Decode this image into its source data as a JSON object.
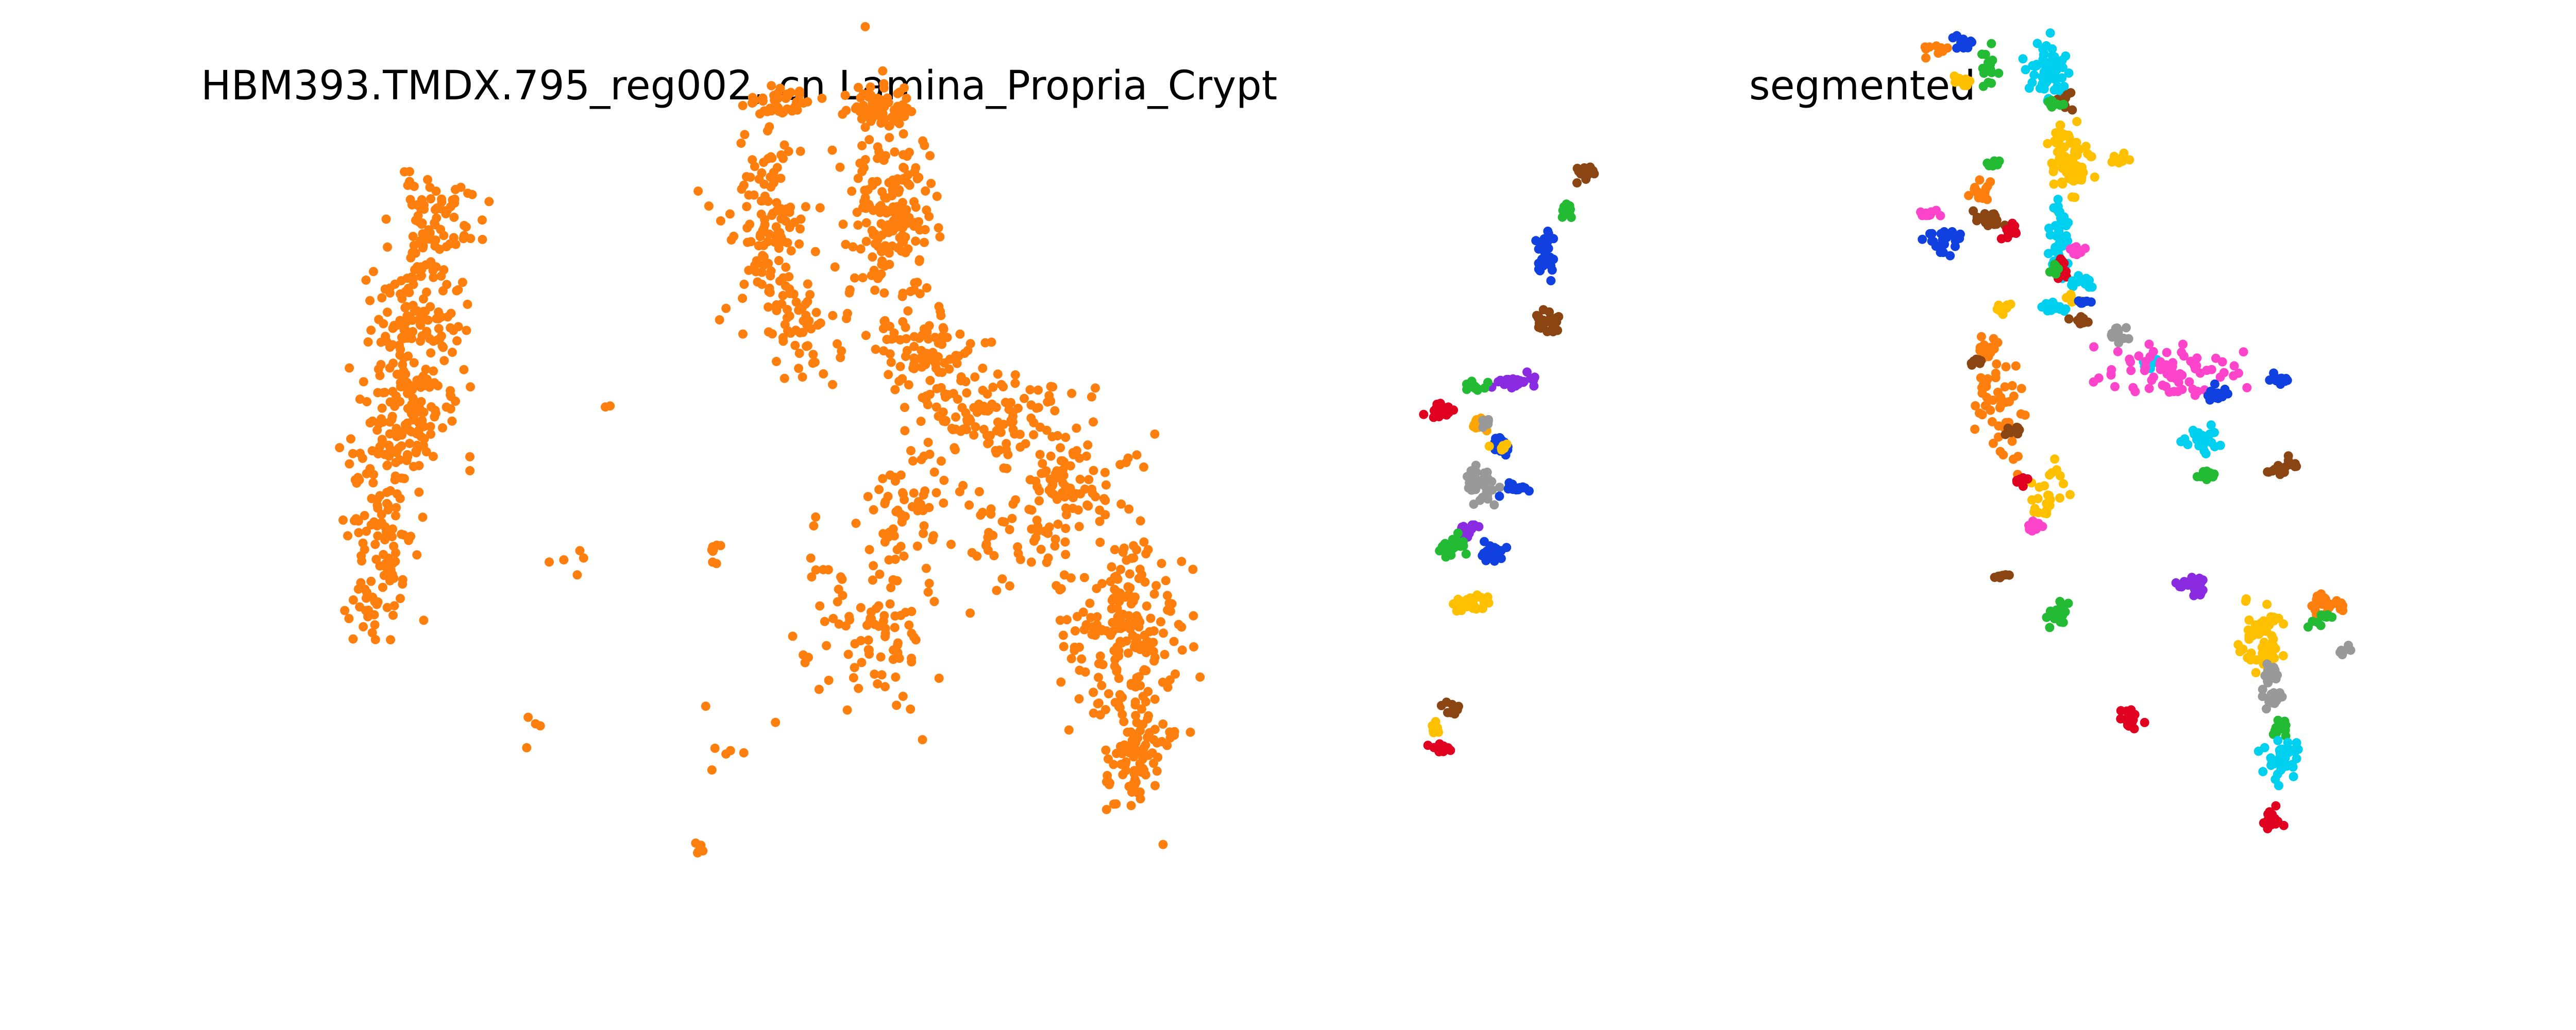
{
  "figure": {
    "left_title": "HBM393.TMDX.795_reg002, cn Lamina_Propria_Crypt",
    "right_title": "segmented"
  },
  "chart_data": [
    {
      "type": "scatter",
      "title": "HBM393.TMDX.795_reg002, cn Lamina_Propria_Crypt",
      "axes": "off",
      "grid": false,
      "legend": "none",
      "xlim": [
        0,
        1600
      ],
      "ylim": [
        0,
        1600
      ],
      "point_color": "#ff7f0e",
      "series": [
        {
          "clusters": [
            {
              "x": 160,
              "y": 1450,
              "sx": 40,
              "sy": 45,
              "n": 70,
              "seed": 11
            },
            {
              "x": 120,
              "y": 1250,
              "sx": 40,
              "sy": 60,
              "n": 120,
              "seed": 12
            },
            {
              "x": 90,
              "y": 1030,
              "sx": 50,
              "sy": 70,
              "n": 140,
              "seed": 13
            },
            {
              "x": 60,
              "y": 800,
              "sx": 30,
              "sy": 90,
              "n": 80,
              "seed": 14
            },
            {
              "x": 40,
              "y": 620,
              "sx": 25,
              "sy": 60,
              "n": 30,
              "seed": 15
            },
            {
              "x": 460,
              "y": 1050,
              "sx": 10,
              "sy": 10,
              "n": 2,
              "seed": 16
            },
            {
              "x": 410,
              "y": 720,
              "sx": 30,
              "sy": 25,
              "n": 5,
              "seed": 17
            },
            {
              "x": 360,
              "y": 350,
              "sx": 20,
              "sy": 30,
              "n": 4,
              "seed": 18
            },
            {
              "x": 785,
              "y": 1700,
              "sx": 30,
              "sy": 20,
              "n": 40,
              "seed": 21
            },
            {
              "x": 760,
              "y": 1440,
              "sx": 40,
              "sy": 100,
              "n": 130,
              "seed": 22
            },
            {
              "x": 820,
              "y": 1200,
              "sx": 35,
              "sy": 60,
              "n": 40,
              "seed": 23
            },
            {
              "x": 960,
              "y": 1690,
              "sx": 30,
              "sy": 25,
              "n": 60,
              "seed": 24
            },
            {
              "x": 985,
              "y": 1450,
              "sx": 40,
              "sy": 110,
              "n": 180,
              "seed": 25
            },
            {
              "x": 1060,
              "y": 1150,
              "sx": 50,
              "sy": 60,
              "n": 80,
              "seed": 26
            },
            {
              "x": 1190,
              "y": 1020,
              "sx": 70,
              "sy": 50,
              "n": 110,
              "seed": 27
            },
            {
              "x": 1320,
              "y": 860,
              "sx": 55,
              "sy": 60,
              "n": 90,
              "seed": 28
            },
            {
              "x": 1010,
              "y": 820,
              "sx": 35,
              "sy": 90,
              "n": 60,
              "seed": 29
            },
            {
              "x": 980,
              "y": 550,
              "sx": 40,
              "sy": 80,
              "n": 60,
              "seed": 30
            },
            {
              "x": 880,
              "y": 600,
              "sx": 40,
              "sy": 100,
              "n": 30,
              "seed": 31
            },
            {
              "x": 1190,
              "y": 770,
              "sx": 55,
              "sy": 60,
              "n": 40,
              "seed": 32
            },
            {
              "x": 1400,
              "y": 580,
              "sx": 50,
              "sy": 100,
              "n": 160,
              "seed": 33
            },
            {
              "x": 1430,
              "y": 300,
              "sx": 30,
              "sy": 70,
              "n": 90,
              "seed": 34
            },
            {
              "x": 1480,
              "y": 500,
              "sx": 40,
              "sy": 90,
              "n": 40,
              "seed": 35
            },
            {
              "x": 660,
              "y": 720,
              "sx": 8,
              "sy": 15,
              "n": 8,
              "seed": 36
            },
            {
              "x": 640,
              "y": 400,
              "sx": 8,
              "sy": 8,
              "n": 1,
              "seed": 37
            },
            {
              "x": 700,
              "y": 270,
              "sx": 40,
              "sy": 40,
              "n": 5,
              "seed": 38
            },
            {
              "x": 640,
              "y": 90,
              "sx": 10,
              "sy": 8,
              "n": 6,
              "seed": 39
            }
          ]
        }
      ]
    },
    {
      "type": "scatter",
      "title": "segmented",
      "axes": "off",
      "grid": false,
      "legend": "none",
      "xlim": [
        0,
        1600
      ],
      "ylim": [
        0,
        1600
      ],
      "segments": [
        {
          "x": 225,
          "y": 1550,
          "sx": 8,
          "sy": 10,
          "n": 14,
          "seed": 101,
          "color": "#8B4513"
        },
        {
          "x": 190,
          "y": 1470,
          "sx": 7,
          "sy": 8,
          "n": 12,
          "seed": 102,
          "color": "#22BB33"
        },
        {
          "x": 150,
          "y": 1370,
          "sx": 10,
          "sy": 25,
          "n": 26,
          "seed": 103,
          "color": "#1040E0"
        },
        {
          "x": 145,
          "y": 1230,
          "sx": 15,
          "sy": 12,
          "n": 24,
          "seed": 104,
          "color": "#8B4513"
        },
        {
          "x": 90,
          "y": 1100,
          "sx": 20,
          "sy": 7,
          "n": 28,
          "seed": 105,
          "color": "#8A2BE2"
        },
        {
          "x": 25,
          "y": 1090,
          "sx": 10,
          "sy": 7,
          "n": 14,
          "seed": 106,
          "color": "#22BB33"
        },
        {
          "x": -40,
          "y": 1040,
          "sx": 14,
          "sy": 8,
          "n": 22,
          "seed": 107,
          "color": "#E00020"
        },
        {
          "x": 30,
          "y": 1010,
          "sx": 8,
          "sy": 8,
          "n": 10,
          "seed": 108,
          "color": "#FFA500"
        },
        {
          "x": 45,
          "y": 1010,
          "sx": 6,
          "sy": 6,
          "n": 6,
          "seed": 109,
          "color": "#999999"
        },
        {
          "x": 70,
          "y": 960,
          "sx": 10,
          "sy": 10,
          "n": 16,
          "seed": 110,
          "color": "#1040E0"
        },
        {
          "x": 70,
          "y": 960,
          "sx": 12,
          "sy": 4,
          "n": 6,
          "seed": 111,
          "color": "#FFC000"
        },
        {
          "x": 30,
          "y": 880,
          "sx": 15,
          "sy": 30,
          "n": 30,
          "seed": 112,
          "color": "#999999"
        },
        {
          "x": 100,
          "y": 870,
          "sx": 15,
          "sy": 7,
          "n": 16,
          "seed": 113,
          "color": "#1040E0"
        },
        {
          "x": 10,
          "y": 780,
          "sx": 10,
          "sy": 8,
          "n": 14,
          "seed": 114,
          "color": "#8A2BE2"
        },
        {
          "x": -25,
          "y": 745,
          "sx": 16,
          "sy": 10,
          "n": 26,
          "seed": 115,
          "color": "#22BB33"
        },
        {
          "x": 50,
          "y": 730,
          "sx": 16,
          "sy": 16,
          "n": 20,
          "seed": 116,
          "color": "#1040E0"
        },
        {
          "x": 20,
          "y": 620,
          "sx": 25,
          "sy": 10,
          "n": 30,
          "seed": 117,
          "color": "#FFC000"
        },
        {
          "x": -20,
          "y": 390,
          "sx": 8,
          "sy": 6,
          "n": 10,
          "seed": 118,
          "color": "#8B4513"
        },
        {
          "x": -50,
          "y": 350,
          "sx": 6,
          "sy": 10,
          "n": 8,
          "seed": 119,
          "color": "#FFC000"
        },
        {
          "x": -40,
          "y": 310,
          "sx": 12,
          "sy": 5,
          "n": 14,
          "seed": 120,
          "color": "#E00020"
        },
        {
          "x": 860,
          "y": 1820,
          "sx": 10,
          "sy": 6,
          "n": 12,
          "seed": 121,
          "color": "#FF7F0E"
        },
        {
          "x": 915,
          "y": 1830,
          "sx": 8,
          "sy": 8,
          "n": 14,
          "seed": 122,
          "color": "#1040E0"
        },
        {
          "x": 960,
          "y": 1780,
          "sx": 10,
          "sy": 25,
          "n": 14,
          "seed": 123,
          "color": "#22BB33"
        },
        {
          "x": 910,
          "y": 1750,
          "sx": 10,
          "sy": 6,
          "n": 10,
          "seed": 124,
          "color": "#FFC000"
        },
        {
          "x": 1070,
          "y": 1770,
          "sx": 18,
          "sy": 30,
          "n": 60,
          "seed": 125,
          "color": "#00D0F0"
        },
        {
          "x": 1100,
          "y": 1700,
          "sx": 8,
          "sy": 12,
          "n": 12,
          "seed": 126,
          "color": "#8B4513"
        },
        {
          "x": 1080,
          "y": 1700,
          "sx": 10,
          "sy": 6,
          "n": 8,
          "seed": 127,
          "color": "#22BB33"
        },
        {
          "x": 1105,
          "y": 1580,
          "sx": 20,
          "sy": 45,
          "n": 70,
          "seed": 128,
          "color": "#FFC000"
        },
        {
          "x": 1200,
          "y": 1580,
          "sx": 8,
          "sy": 8,
          "n": 8,
          "seed": 129,
          "color": "#FFC000"
        },
        {
          "x": 965,
          "y": 1570,
          "sx": 8,
          "sy": 6,
          "n": 10,
          "seed": 130,
          "color": "#22BB33"
        },
        {
          "x": 945,
          "y": 1510,
          "sx": 10,
          "sy": 10,
          "n": 14,
          "seed": 131,
          "color": "#FF7F0E"
        },
        {
          "x": 960,
          "y": 1450,
          "sx": 15,
          "sy": 12,
          "n": 20,
          "seed": 132,
          "color": "#8B4513"
        },
        {
          "x": 1000,
          "y": 1430,
          "sx": 8,
          "sy": 12,
          "n": 14,
          "seed": 133,
          "color": "#E00020"
        },
        {
          "x": 850,
          "y": 1460,
          "sx": 10,
          "sy": 6,
          "n": 12,
          "seed": 134,
          "color": "#FF44CC"
        },
        {
          "x": 880,
          "y": 1400,
          "sx": 14,
          "sy": 14,
          "n": 24,
          "seed": 135,
          "color": "#1040E0"
        },
        {
          "x": 1090,
          "y": 1410,
          "sx": 10,
          "sy": 40,
          "n": 40,
          "seed": 136,
          "color": "#00D0F0"
        },
        {
          "x": 1120,
          "y": 1380,
          "sx": 10,
          "sy": 6,
          "n": 12,
          "seed": 137,
          "color": "#FF44CC"
        },
        {
          "x": 1095,
          "y": 1340,
          "sx": 7,
          "sy": 12,
          "n": 14,
          "seed": 138,
          "color": "#E00020"
        },
        {
          "x": 1080,
          "y": 1340,
          "sx": 5,
          "sy": 10,
          "n": 8,
          "seed": 139,
          "color": "#22BB33"
        },
        {
          "x": 1130,
          "y": 1310,
          "sx": 10,
          "sy": 10,
          "n": 14,
          "seed": 140,
          "color": "#00D0F0"
        },
        {
          "x": 1110,
          "y": 1280,
          "sx": 6,
          "sy": 6,
          "n": 8,
          "seed": 141,
          "color": "#FFC000"
        },
        {
          "x": 1130,
          "y": 1270,
          "sx": 8,
          "sy": 6,
          "n": 8,
          "seed": 142,
          "color": "#1040E0"
        },
        {
          "x": 1080,
          "y": 1260,
          "sx": 12,
          "sy": 6,
          "n": 12,
          "seed": 143,
          "color": "#00D0F0"
        },
        {
          "x": 1130,
          "y": 1230,
          "sx": 10,
          "sy": 6,
          "n": 12,
          "seed": 144,
          "color": "#8B4513"
        },
        {
          "x": 985,
          "y": 1260,
          "sx": 8,
          "sy": 6,
          "n": 8,
          "seed": 145,
          "color": "#FFC000"
        },
        {
          "x": 1190,
          "y": 1200,
          "sx": 10,
          "sy": 8,
          "n": 14,
          "seed": 146,
          "color": "#999999"
        },
        {
          "x": 1250,
          "y": 1140,
          "sx": 10,
          "sy": 8,
          "n": 12,
          "seed": 147,
          "color": "#00D0F0"
        },
        {
          "x": 1290,
          "y": 1120,
          "sx": 60,
          "sy": 30,
          "n": 70,
          "seed": 148,
          "color": "#FF44CC"
        },
        {
          "x": 1380,
          "y": 1070,
          "sx": 10,
          "sy": 10,
          "n": 14,
          "seed": 149,
          "color": "#1040E0"
        },
        {
          "x": 1490,
          "y": 1100,
          "sx": 10,
          "sy": 8,
          "n": 14,
          "seed": 150,
          "color": "#1040E0"
        },
        {
          "x": 950,
          "y": 1170,
          "sx": 10,
          "sy": 12,
          "n": 14,
          "seed": 151,
          "color": "#FF7F0E"
        },
        {
          "x": 940,
          "y": 1140,
          "sx": 8,
          "sy": 6,
          "n": 10,
          "seed": 152,
          "color": "#8B4513"
        },
        {
          "x": 980,
          "y": 1060,
          "sx": 20,
          "sy": 60,
          "n": 50,
          "seed": 153,
          "color": "#FF7F0E"
        },
        {
          "x": 1005,
          "y": 990,
          "sx": 8,
          "sy": 6,
          "n": 10,
          "seed": 154,
          "color": "#8B4513"
        },
        {
          "x": 1350,
          "y": 970,
          "sx": 18,
          "sy": 12,
          "n": 24,
          "seed": 155,
          "color": "#00D0F0"
        },
        {
          "x": 1360,
          "y": 900,
          "sx": 10,
          "sy": 8,
          "n": 12,
          "seed": 156,
          "color": "#22BB33"
        },
        {
          "x": 1500,
          "y": 910,
          "sx": 16,
          "sy": 10,
          "n": 18,
          "seed": 157,
          "color": "#8B4513"
        },
        {
          "x": 1070,
          "y": 870,
          "sx": 18,
          "sy": 30,
          "n": 24,
          "seed": 158,
          "color": "#FFC000"
        },
        {
          "x": 1020,
          "y": 890,
          "sx": 6,
          "sy": 8,
          "n": 8,
          "seed": 159,
          "color": "#E00020"
        },
        {
          "x": 1050,
          "y": 790,
          "sx": 8,
          "sy": 10,
          "n": 10,
          "seed": 160,
          "color": "#FF44CC"
        },
        {
          "x": 980,
          "y": 680,
          "sx": 8,
          "sy": 6,
          "n": 8,
          "seed": 161,
          "color": "#8B4513"
        },
        {
          "x": 1090,
          "y": 600,
          "sx": 12,
          "sy": 12,
          "n": 16,
          "seed": 162,
          "color": "#22BB33"
        },
        {
          "x": 1330,
          "y": 660,
          "sx": 18,
          "sy": 10,
          "n": 20,
          "seed": 163,
          "color": "#8A2BE2"
        },
        {
          "x": 1580,
          "y": 620,
          "sx": 16,
          "sy": 12,
          "n": 24,
          "seed": 164,
          "color": "#FF7F0E"
        },
        {
          "x": 1560,
          "y": 590,
          "sx": 10,
          "sy": 8,
          "n": 10,
          "seed": 165,
          "color": "#22BB33"
        },
        {
          "x": 1460,
          "y": 540,
          "sx": 20,
          "sy": 40,
          "n": 60,
          "seed": 166,
          "color": "#FFC000"
        },
        {
          "x": 1470,
          "y": 470,
          "sx": 10,
          "sy": 10,
          "n": 14,
          "seed": 167,
          "color": "#999999"
        },
        {
          "x": 1610,
          "y": 520,
          "sx": 6,
          "sy": 6,
          "n": 6,
          "seed": 168,
          "color": "#999999"
        },
        {
          "x": 1480,
          "y": 410,
          "sx": 12,
          "sy": 12,
          "n": 18,
          "seed": 169,
          "color": "#999999"
        },
        {
          "x": 1490,
          "y": 350,
          "sx": 10,
          "sy": 10,
          "n": 14,
          "seed": 170,
          "color": "#22BB33"
        },
        {
          "x": 1500,
          "y": 290,
          "sx": 18,
          "sy": 20,
          "n": 40,
          "seed": 171,
          "color": "#00D0F0"
        },
        {
          "x": 1220,
          "y": 370,
          "sx": 10,
          "sy": 12,
          "n": 20,
          "seed": 172,
          "color": "#E00020"
        },
        {
          "x": 1480,
          "y": 150,
          "sx": 10,
          "sy": 15,
          "n": 20,
          "seed": 173,
          "color": "#E00020"
        }
      ]
    }
  ]
}
